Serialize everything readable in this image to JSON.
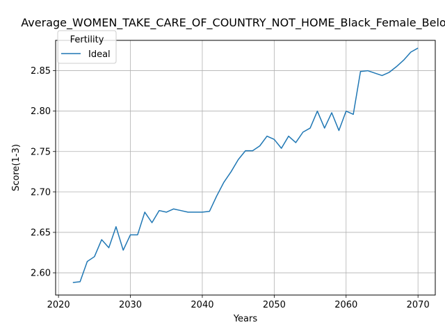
{
  "chart_data": {
    "type": "line",
    "title": "Average_WOMEN_TAKE_CARE_OF_COUNTRY_NOT_HOME_Black_Female_Below_A",
    "xlabel": "Years",
    "ylabel": "Score(1-3)",
    "xlim": [
      2019.6,
      2072.4
    ],
    "ylim": [
      2.5725,
      2.8875
    ],
    "x_ticks": [
      2020,
      2030,
      2040,
      2050,
      2060,
      2070
    ],
    "y_ticks": [
      2.6,
      2.65,
      2.7,
      2.75,
      2.8,
      2.85
    ],
    "x_tick_labels": [
      "2020",
      "2030",
      "2040",
      "2050",
      "2060",
      "2070"
    ],
    "y_tick_labels": [
      "2.60",
      "2.65",
      "2.70",
      "2.75",
      "2.80",
      "2.85"
    ],
    "grid": true,
    "legend": {
      "title": "Fertility",
      "placement": "top-left"
    },
    "series": [
      {
        "name": "Ideal",
        "color": "#1f77b4",
        "x": [
          2022,
          2023,
          2024,
          2025,
          2026,
          2027,
          2028,
          2029,
          2030,
          2031,
          2032,
          2033,
          2034,
          2035,
          2036,
          2037,
          2038,
          2039,
          2040,
          2041,
          2042,
          2043,
          2044,
          2045,
          2046,
          2047,
          2048,
          2049,
          2050,
          2051,
          2052,
          2053,
          2054,
          2055,
          2056,
          2057,
          2058,
          2059,
          2060,
          2061,
          2062,
          2063,
          2064,
          2065,
          2066,
          2067,
          2068,
          2069,
          2070
        ],
        "y": [
          2.588,
          2.589,
          2.614,
          2.62,
          2.641,
          2.631,
          2.657,
          2.628,
          2.647,
          2.647,
          2.675,
          2.662,
          2.677,
          2.675,
          2.679,
          2.677,
          2.675,
          2.675,
          2.675,
          2.676,
          2.695,
          2.712,
          2.725,
          2.74,
          2.751,
          2.751,
          2.757,
          2.769,
          2.765,
          2.754,
          2.769,
          2.761,
          2.774,
          2.779,
          2.8,
          2.779,
          2.798,
          2.776,
          2.8,
          2.796,
          2.849,
          2.85,
          2.847,
          2.844,
          2.848,
          2.855,
          2.863,
          2.873,
          2.878
        ]
      }
    ]
  }
}
